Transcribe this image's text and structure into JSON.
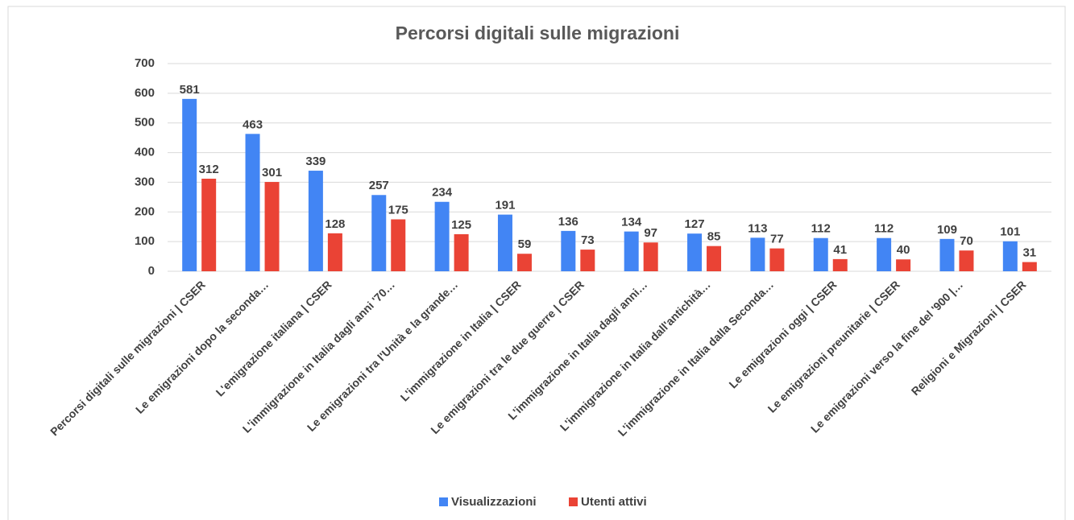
{
  "chart_data": {
    "type": "bar",
    "title": "Percorsi digitali sulle migrazioni",
    "categories": [
      "Percorsi digitali sulle migrazioni | CSER",
      "Le emigrazioni dopo la seconda…",
      "L'emigrazione italiana | CSER",
      "L'immigrazione in Italia dagli anni '70…",
      "Le emigrazioni tra l'Unità e la grande…",
      "L'immigrazione in Italia | CSER",
      "Le emigrazioni tra le due guerre | CSER",
      "L'immigrazione in Italia dagli anni…",
      "L'immigrazione in Italia dall'antichità…",
      "L'immigrazione in Italia dalla Seconda…",
      "Le emigrazioni oggi | CSER",
      "Le emigrazioni preunitarie | CSER",
      "Le emigrazioni verso la fine del '900 |…",
      "Religioni e Migrazioni | CSER"
    ],
    "series": [
      {
        "name": "Visualizzazioni",
        "color": "#4285f4",
        "values": [
          581,
          463,
          339,
          257,
          234,
          191,
          136,
          134,
          127,
          113,
          112,
          112,
          109,
          101
        ]
      },
      {
        "name": "Utenti attivi",
        "color": "#ea4335",
        "values": [
          312,
          301,
          128,
          175,
          125,
          59,
          73,
          97,
          85,
          77,
          41,
          40,
          70,
          31
        ]
      }
    ],
    "ylim": [
      0,
      700
    ],
    "yticks": [
      0,
      100,
      200,
      300,
      400,
      500,
      600,
      700
    ],
    "grid": true,
    "legend": "bottom"
  }
}
